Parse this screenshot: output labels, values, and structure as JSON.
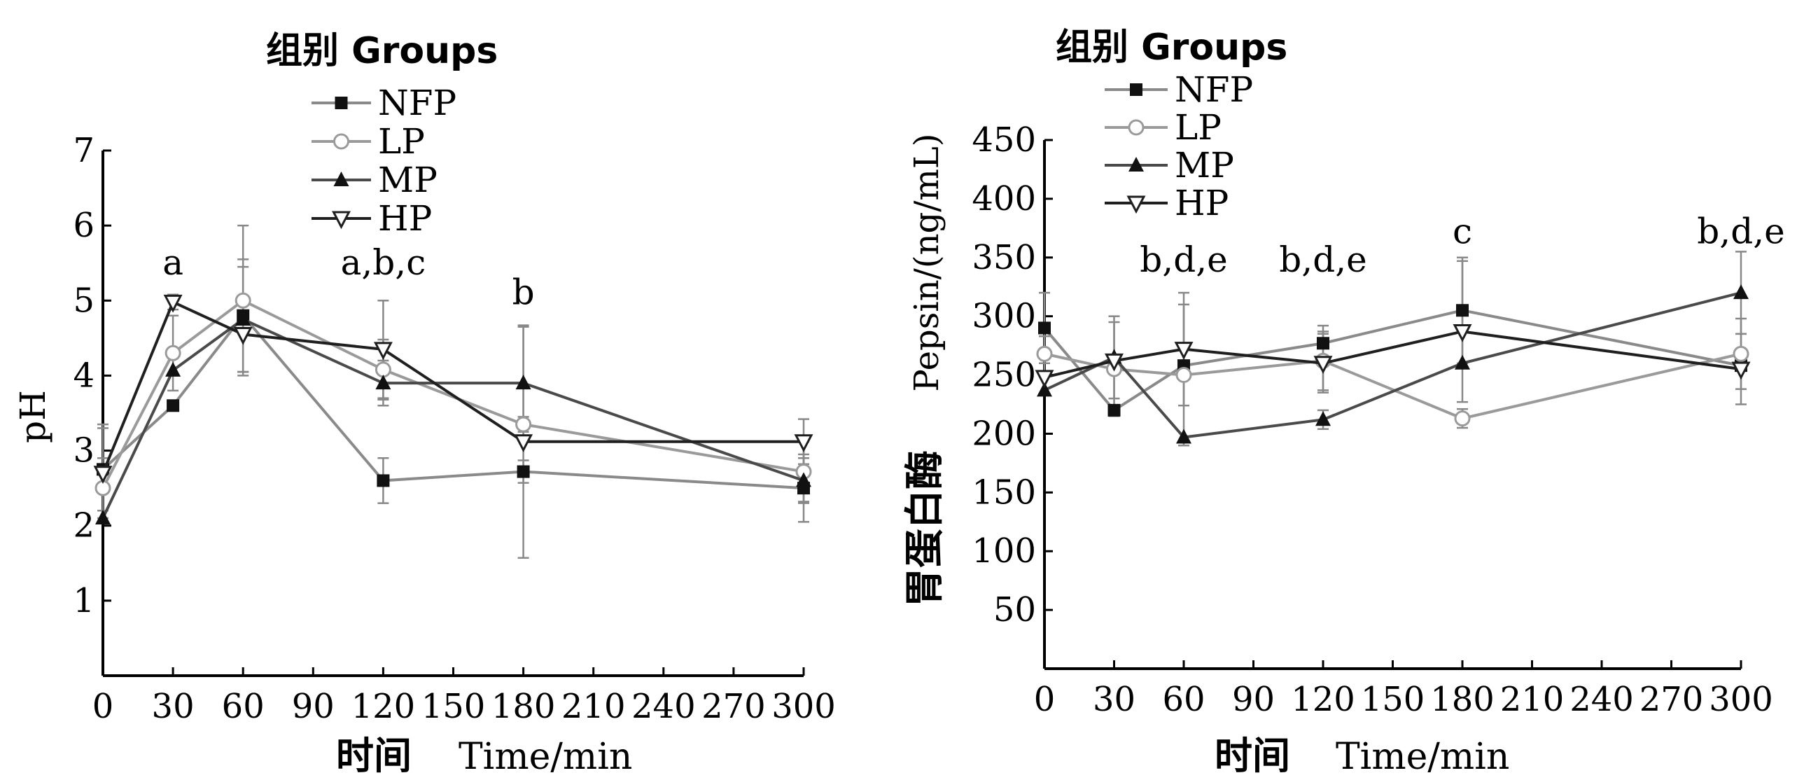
{
  "charts": [
    {
      "legend_title": "组别 Groups",
      "ylabel": "pH",
      "xlabel_cn": "时间",
      "xlabel_en": "Time/min"
    },
    {
      "legend_title": "组别 Groups",
      "ylabel_cn": "胃蛋白酶",
      "ylabel_en": "Pepsin/(ng/mL)",
      "xlabel_cn": "时间",
      "xlabel_en": "Time/min"
    }
  ],
  "colors": {
    "NFP": "#8a8a8a",
    "LP": "#9a9a9a",
    "MP": "#4a4a4a",
    "HP": "#1f1f1f",
    "axis": "#000000",
    "error_bar": "#888888"
  },
  "chart_data": [
    {
      "type": "line",
      "xlabel": "时间 Time/min",
      "ylabel": "pH",
      "legend_title": "组别 Groups",
      "legend_position": "top-left",
      "grid": false,
      "xlim": [
        0,
        300
      ],
      "ylim": [
        0,
        7
      ],
      "x_ticks": [
        0,
        30,
        60,
        90,
        120,
        150,
        180,
        210,
        240,
        270,
        300
      ],
      "y_ticks": [
        1,
        2,
        3,
        4,
        5,
        6,
        7
      ],
      "x": [
        0,
        30,
        60,
        120,
        180,
        300
      ],
      "series": [
        {
          "name": "NFP",
          "marker": "square",
          "values": [
            2.75,
            3.6,
            4.8,
            2.6,
            2.72,
            2.5
          ],
          "errors": [
            0.55,
            0,
            0.75,
            0.3,
            0.15,
            0.45
          ]
        },
        {
          "name": "LP",
          "marker": "circle-open",
          "values": [
            2.5,
            4.3,
            5.0,
            4.08,
            3.35,
            2.72
          ],
          "errors": [
            0.4,
            0.5,
            1.0,
            0.4,
            0.1,
            0.4
          ]
        },
        {
          "name": "MP",
          "marker": "triangle-up",
          "values": [
            2.1,
            4.07,
            4.75,
            3.9,
            3.9,
            2.6
          ],
          "errors": [
            0,
            0,
            0.7,
            0.3,
            0.75,
            0.3
          ]
        },
        {
          "name": "HP",
          "marker": "triangle-down-open",
          "values": [
            2.7,
            4.98,
            4.55,
            4.35,
            3.12,
            3.12
          ],
          "errors": [
            0.65,
            0.1,
            0.5,
            0.65,
            1.55,
            0.3
          ]
        }
      ],
      "annotations": [
        {
          "x": 30,
          "y": 5.35,
          "text": "a"
        },
        {
          "x": 120,
          "y": 5.35,
          "text": "a,b,c"
        },
        {
          "x": 180,
          "y": 4.95,
          "text": "b"
        }
      ]
    },
    {
      "type": "line",
      "xlabel": "时间 Time/min",
      "ylabel": "胃蛋白酶 Pepsin/(ng/mL)",
      "legend_title": "组别 Groups",
      "legend_position": "top-left",
      "grid": false,
      "xlim": [
        0,
        300
      ],
      "ylim": [
        0,
        450
      ],
      "x_ticks": [
        0,
        30,
        60,
        90,
        120,
        150,
        180,
        210,
        240,
        270,
        300
      ],
      "y_ticks": [
        50,
        100,
        150,
        200,
        250,
        300,
        350,
        400,
        450
      ],
      "x": [
        0,
        30,
        60,
        120,
        180,
        300
      ],
      "series": [
        {
          "name": "NFP",
          "marker": "square",
          "values": [
            290,
            220,
            258,
            277,
            305,
            258
          ],
          "errors": [
            30,
            0,
            0,
            15,
            45,
            0
          ]
        },
        {
          "name": "LP",
          "marker": "circle-open",
          "values": [
            268,
            255,
            250,
            262,
            213,
            268
          ],
          "errors": [
            15,
            40,
            60,
            25,
            8,
            30
          ]
        },
        {
          "name": "MP",
          "marker": "triangle-up",
          "values": [
            237,
            265,
            197,
            212,
            260,
            320
          ],
          "errors": [
            0,
            35,
            0,
            8,
            0,
            35
          ]
        },
        {
          "name": "HP",
          "marker": "triangle-down-open",
          "values": [
            248,
            262,
            272,
            260,
            287,
            255
          ],
          "errors": [
            0,
            0,
            48,
            25,
            60,
            30
          ]
        }
      ],
      "annotations": [
        {
          "x": 60,
          "y": 338,
          "text": "b,d,e"
        },
        {
          "x": 120,
          "y": 338,
          "text": "b,d,e"
        },
        {
          "x": 180,
          "y": 362,
          "text": "c"
        },
        {
          "x": 300,
          "y": 362,
          "text": "b,d,e"
        }
      ]
    }
  ]
}
